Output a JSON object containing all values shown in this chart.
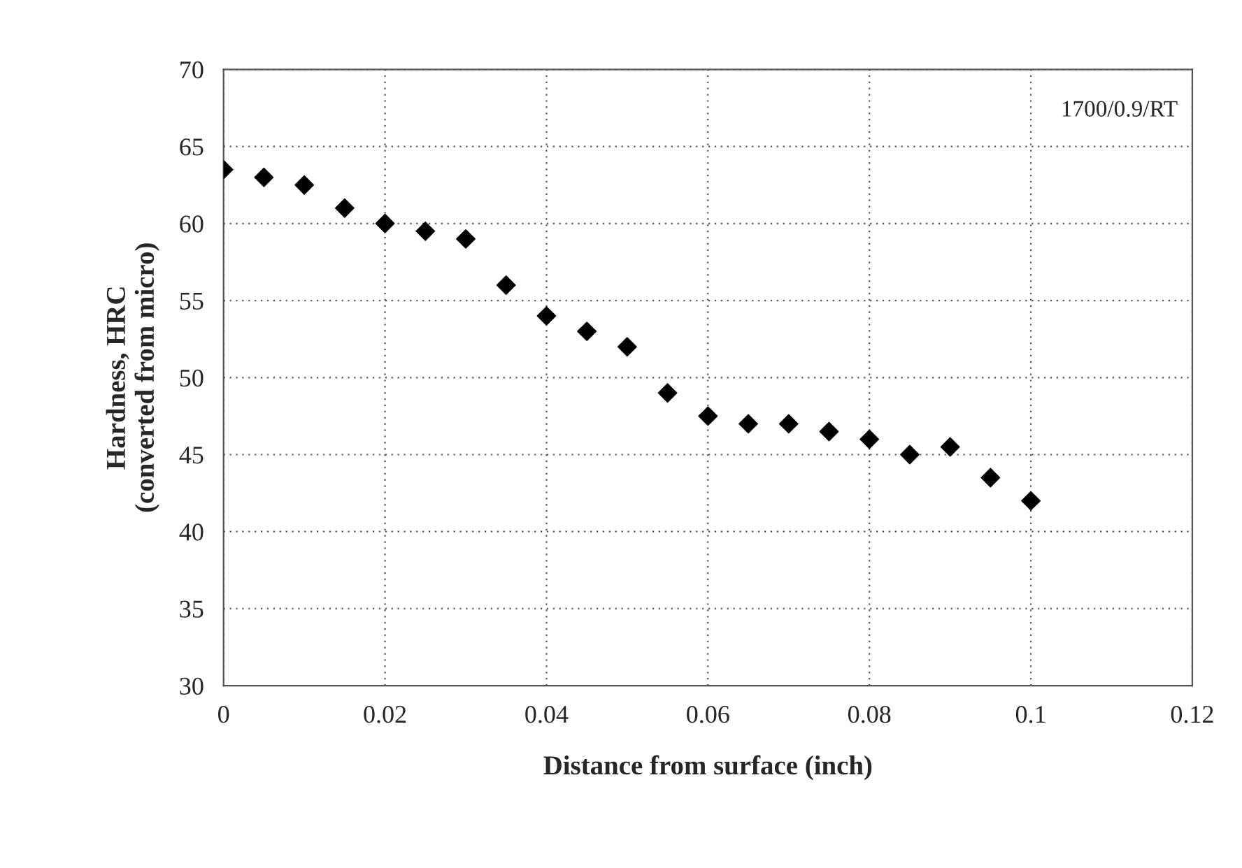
{
  "chart_data": {
    "type": "scatter",
    "xlabel": "Distance from surface (inch)",
    "ylabel": "Hardness, HRC\n(converted from micro)",
    "x": [
      0,
      0.005,
      0.01,
      0.015,
      0.02,
      0.025,
      0.03,
      0.035,
      0.04,
      0.045,
      0.05,
      0.055,
      0.06,
      0.065,
      0.07,
      0.075,
      0.08,
      0.085,
      0.09,
      0.095,
      0.1
    ],
    "series": [
      {
        "color": "#000000",
        "values": [
          63.5,
          63,
          62.5,
          61,
          60,
          59.5,
          59,
          56,
          54,
          53,
          52,
          49,
          47.5,
          47,
          47,
          46.5,
          46,
          45,
          45.5,
          43.5,
          42
        ]
      }
    ],
    "xlim": [
      0,
      0.12
    ],
    "xticks": [
      0,
      0.02,
      0.04,
      0.06,
      0.08,
      0.1,
      0.12
    ],
    "ylim": [
      30,
      70
    ],
    "yticks": [
      30,
      35,
      40,
      45,
      50,
      55,
      60,
      65,
      70
    ],
    "grid": true,
    "marker": "diamond",
    "legend": false,
    "annotations": [
      "1700/0.9/RT"
    ]
  }
}
